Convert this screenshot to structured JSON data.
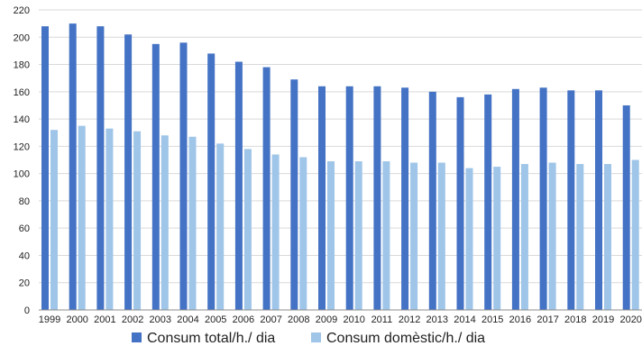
{
  "chart_data": {
    "type": "bar",
    "categories": [
      "1999",
      "2000",
      "2001",
      "2002",
      "2003",
      "2004",
      "2005",
      "2006",
      "2007",
      "2008",
      "2009",
      "2010",
      "2011",
      "2012",
      "2013",
      "2014",
      "2015",
      "2016",
      "2017",
      "2018",
      "2019",
      "2020"
    ],
    "series": [
      {
        "name": "Consum total/h./ dia",
        "color": "#4472c4",
        "values": [
          208,
          210,
          208,
          202,
          195,
          196,
          188,
          182,
          178,
          169,
          164,
          164,
          164,
          163,
          160,
          156,
          158,
          162,
          163,
          161,
          161,
          150
        ]
      },
      {
        "name": "Consum domèstic/h./ dia",
        "color": "#9fc5e8",
        "values": [
          132,
          135,
          133,
          131,
          128,
          127,
          122,
          118,
          114,
          112,
          109,
          109,
          109,
          108,
          108,
          104,
          105,
          107,
          108,
          107,
          107,
          110
        ]
      }
    ],
    "yticks": [
      "0",
      "20",
      "40",
      "60",
      "80",
      "100",
      "120",
      "140",
      "160",
      "180",
      "200",
      "220"
    ],
    "ylim": [
      0,
      220
    ],
    "grid": true,
    "legend_position": "bottom",
    "title": "",
    "xlabel": "",
    "ylabel": ""
  }
}
